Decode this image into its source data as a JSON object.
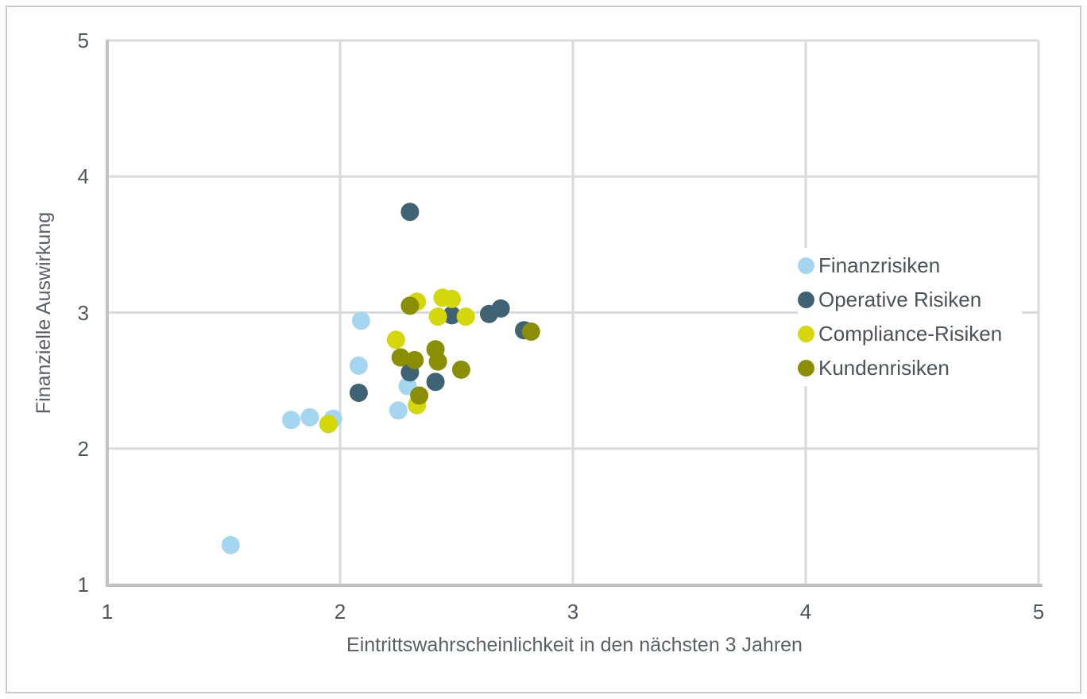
{
  "chart_data": {
    "type": "scatter",
    "title": "",
    "xlabel": "Eintrittswahrscheinlichkeit in den nächsten 3 Jahren",
    "ylabel": "Finanzielle Auswirkung",
    "xlim": [
      1,
      5
    ],
    "ylim": [
      1,
      5
    ],
    "x_ticks": [
      "1",
      "2",
      "3",
      "4",
      "5"
    ],
    "y_ticks": [
      "1",
      "2",
      "3",
      "4",
      "5"
    ],
    "grid": true,
    "legend_position": "middle-right",
    "series": [
      {
        "name": "Finanzrisiken",
        "color": "#a5d6f1",
        "points": [
          [
            1.53,
            1.29
          ],
          [
            1.79,
            2.21
          ],
          [
            1.87,
            2.23
          ],
          [
            1.97,
            2.22
          ],
          [
            2.08,
            2.61
          ],
          [
            2.09,
            2.94
          ],
          [
            2.25,
            2.28
          ],
          [
            2.29,
            2.46
          ]
        ]
      },
      {
        "name": "Operative Risiken",
        "color": "#3f6274",
        "points": [
          [
            2.08,
            2.41
          ],
          [
            2.3,
            2.56
          ],
          [
            2.3,
            3.74
          ],
          [
            2.41,
            2.49
          ],
          [
            2.48,
            2.98
          ],
          [
            2.64,
            2.99
          ],
          [
            2.69,
            3.03
          ],
          [
            2.79,
            2.87
          ]
        ]
      },
      {
        "name": "Compliance-Risiken",
        "color": "#d3d70b",
        "points": [
          [
            1.95,
            2.18
          ],
          [
            2.24,
            2.8
          ],
          [
            2.33,
            2.32
          ],
          [
            2.33,
            3.08
          ],
          [
            2.42,
            2.97
          ],
          [
            2.44,
            3.11
          ],
          [
            2.48,
            3.1
          ],
          [
            2.54,
            2.97
          ]
        ]
      },
      {
        "name": "Kundenrisiken",
        "color": "#898e05",
        "points": [
          [
            2.26,
            2.67
          ],
          [
            2.3,
            3.05
          ],
          [
            2.32,
            2.65
          ],
          [
            2.34,
            2.39
          ],
          [
            2.41,
            2.73
          ],
          [
            2.42,
            2.64
          ],
          [
            2.52,
            2.58
          ],
          [
            2.82,
            2.86
          ]
        ]
      }
    ]
  },
  "styles": {
    "grid_color": "#dadada",
    "axis_color": "#c2c2c2",
    "tick_label_color": "#4e5760",
    "axis_title_color": "#5a6068",
    "legend_text_color": "#4b525a",
    "background": "#ffffff",
    "border_color": "#cacaca"
  }
}
